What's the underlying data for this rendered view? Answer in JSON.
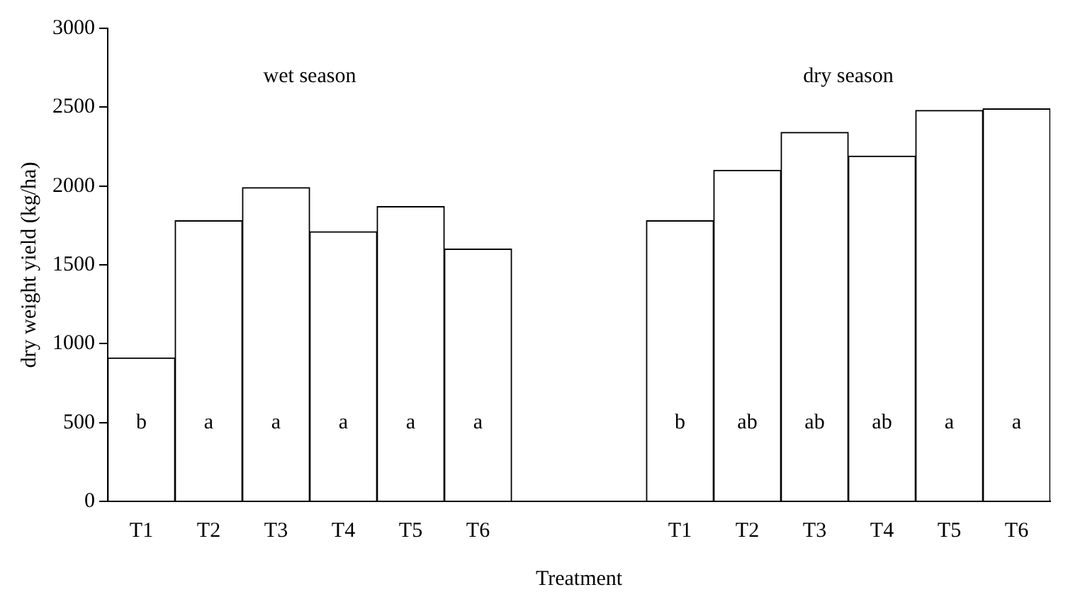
{
  "chart_data": {
    "type": "bar",
    "xlabel": "Treatment",
    "ylabel": "dry weight yield (kg/ha)",
    "categories": [
      "T1",
      "T2",
      "T3",
      "T4",
      "T5",
      "T6",
      null,
      null,
      "T1",
      "T2",
      "T3",
      "T4",
      "T5",
      "T6"
    ],
    "values": [
      910,
      1780,
      1990,
      1710,
      1870,
      1600,
      null,
      null,
      1780,
      2100,
      2340,
      2190,
      2480,
      2490
    ],
    "value_labels": [
      "b",
      "a",
      "a",
      "a",
      "a",
      "a",
      null,
      null,
      "b",
      "ab",
      "ab",
      "ab",
      "a",
      "a"
    ],
    "color": "#ffffff",
    "ylim": [
      0,
      3000
    ],
    "yticks": [
      0,
      500,
      1000,
      1500,
      2000,
      2500,
      3000
    ],
    "grid": false,
    "legend": false,
    "annotations": [
      "wet season",
      "dry season"
    ]
  }
}
